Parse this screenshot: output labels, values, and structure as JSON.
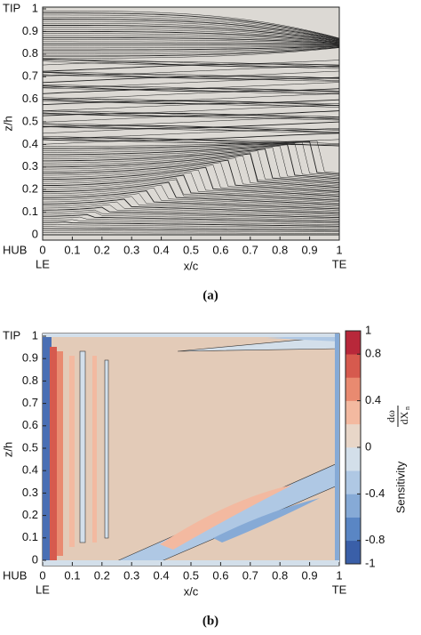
{
  "chart_data": [
    {
      "type": "streamline",
      "panel_label": "(a)",
      "xlabel": "x/c",
      "ylabel": "z/h",
      "xlim": [
        0,
        1
      ],
      "ylim": [
        0,
        1
      ],
      "xticks": [
        0,
        0.1,
        0.2,
        0.3,
        0.4,
        0.5,
        0.6,
        0.7,
        0.8,
        0.9,
        1
      ],
      "yticks": [
        0,
        0.1,
        0.2,
        0.3,
        0.4,
        0.5,
        0.6,
        0.7,
        0.8,
        0.9,
        1
      ],
      "annotations": {
        "top": "TIP",
        "bottom": "HUB",
        "left": "LE",
        "right": "TE"
      }
    },
    {
      "type": "contour",
      "panel_label": "(b)",
      "xlabel": "x/c",
      "ylabel": "z/h",
      "xlim": [
        0,
        1
      ],
      "ylim": [
        0,
        1
      ],
      "xticks": [
        0,
        0.1,
        0.2,
        0.3,
        0.4,
        0.5,
        0.6,
        0.7,
        0.8,
        0.9,
        1
      ],
      "yticks": [
        0,
        0.1,
        0.2,
        0.3,
        0.4,
        0.5,
        0.6,
        0.7,
        0.8,
        0.9,
        1
      ],
      "annotations": {
        "top": "TIP",
        "bottom": "HUB",
        "left": "LE",
        "right": "TE"
      },
      "colorbar": {
        "label": "Sensitivity",
        "numerator": "dω",
        "denominator": "dX",
        "subscript": "n",
        "lim": [
          -1,
          1
        ],
        "ticks": [
          -1,
          -0.8,
          -0.4,
          0,
          0.4,
          0.8,
          1
        ],
        "colors": [
          "#3a5fa8",
          "#5a86c4",
          "#86aad6",
          "#afc8e4",
          "#d3dfea",
          "#e8d6c8",
          "#f3b9a0",
          "#e98a70",
          "#d65a4e",
          "#b8283a"
        ]
      }
    }
  ]
}
